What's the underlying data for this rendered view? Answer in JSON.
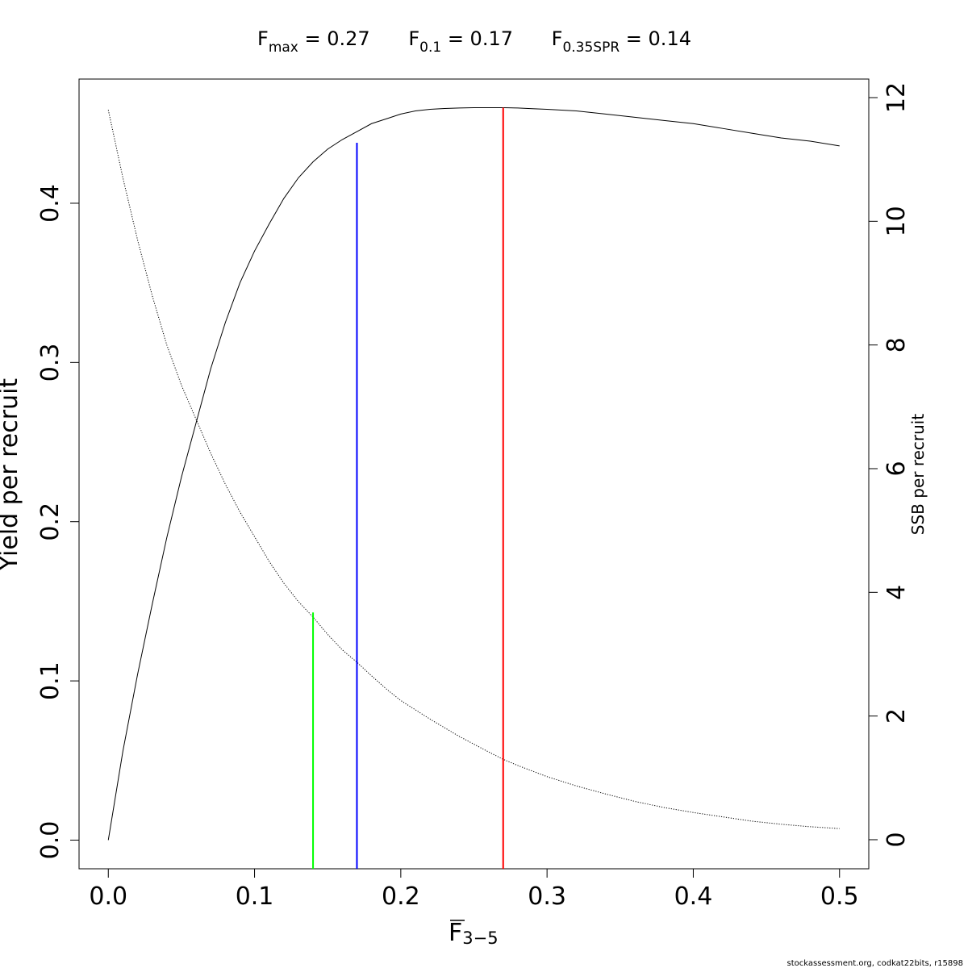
{
  "chart_data": {
    "type": "line",
    "title_parts": [
      {
        "main": "F",
        "sub": "max",
        "rest": " = 0.27"
      },
      {
        "main": "F",
        "sub": "0.1",
        "rest": " = 0.17"
      },
      {
        "main": "F",
        "sub": "0.35SPR",
        "rest": " = 0.14"
      }
    ],
    "xlabel_main": "F",
    "xlabel_sub": "3−5",
    "ylabel_left": "Yield per recruit",
    "ylabel_right": "SSB per recruit",
    "xlim": [
      -0.02,
      0.52
    ],
    "ylim_left": [
      -0.018,
      0.478
    ],
    "ylim_right": [
      -0.47,
      12.3
    ],
    "x_ticks": [
      0.0,
      0.1,
      0.2,
      0.3,
      0.4,
      0.5
    ],
    "x_tick_labels": [
      "0.0",
      "0.1",
      "0.2",
      "0.3",
      "0.4",
      "0.5"
    ],
    "y_left_ticks": [
      0.0,
      0.1,
      0.2,
      0.3,
      0.4
    ],
    "y_left_tick_labels": [
      "0.0",
      "0.1",
      "0.2",
      "0.3",
      "0.4"
    ],
    "y_right_ticks": [
      0,
      2,
      4,
      6,
      8,
      10,
      12
    ],
    "y_right_tick_labels": [
      "0",
      "2",
      "4",
      "6",
      "8",
      "10",
      "12"
    ],
    "series": [
      {
        "name": "Yield per recruit",
        "axis": "left",
        "style": "solid",
        "color": "#000000",
        "x": [
          0.0,
          0.01,
          0.02,
          0.03,
          0.04,
          0.05,
          0.06,
          0.07,
          0.08,
          0.09,
          0.1,
          0.11,
          0.12,
          0.13,
          0.14,
          0.15,
          0.16,
          0.17,
          0.18,
          0.19,
          0.2,
          0.21,
          0.22,
          0.23,
          0.24,
          0.25,
          0.26,
          0.27,
          0.28,
          0.29,
          0.3,
          0.32,
          0.34,
          0.36,
          0.38,
          0.4,
          0.42,
          0.44,
          0.46,
          0.48,
          0.5
        ],
        "y": [
          0.0,
          0.056,
          0.104,
          0.148,
          0.19,
          0.228,
          0.262,
          0.296,
          0.325,
          0.35,
          0.37,
          0.387,
          0.403,
          0.416,
          0.426,
          0.434,
          0.44,
          0.445,
          0.45,
          0.453,
          0.456,
          0.458,
          0.459,
          0.4595,
          0.4598,
          0.46,
          0.46,
          0.46,
          0.4598,
          0.4594,
          0.459,
          0.458,
          0.456,
          0.454,
          0.452,
          0.45,
          0.447,
          0.444,
          0.441,
          0.439,
          0.436
        ]
      },
      {
        "name": "SSB per recruit",
        "axis": "right",
        "style": "dotted",
        "color": "#000000",
        "x": [
          0.0,
          0.01,
          0.02,
          0.03,
          0.04,
          0.05,
          0.06,
          0.07,
          0.08,
          0.09,
          0.1,
          0.11,
          0.12,
          0.13,
          0.14,
          0.15,
          0.16,
          0.17,
          0.18,
          0.19,
          0.2,
          0.22,
          0.24,
          0.26,
          0.27,
          0.28,
          0.3,
          0.32,
          0.34,
          0.36,
          0.38,
          0.4,
          0.42,
          0.44,
          0.46,
          0.48,
          0.5
        ],
        "y": [
          11.8,
          10.7,
          9.7,
          8.8,
          8.0,
          7.35,
          6.8,
          6.25,
          5.75,
          5.3,
          4.9,
          4.5,
          4.15,
          3.85,
          3.6,
          3.32,
          3.07,
          2.87,
          2.65,
          2.44,
          2.25,
          1.95,
          1.67,
          1.42,
          1.3,
          1.2,
          1.02,
          0.87,
          0.74,
          0.62,
          0.52,
          0.44,
          0.37,
          0.3,
          0.25,
          0.21,
          0.18
        ]
      }
    ],
    "reference_lines": [
      {
        "name": "Fmax",
        "x": 0.27,
        "y_top": 0.46,
        "color": "#ff0000"
      },
      {
        "name": "F0.1",
        "x": 0.17,
        "y_top": 0.438,
        "color": "#0000ff"
      },
      {
        "name": "F0.35SPR",
        "x": 0.14,
        "y_top": 0.143,
        "color": "#00ff00"
      }
    ],
    "grid": false
  },
  "footer": "stockassessment.org, codkat22bits, r15898"
}
